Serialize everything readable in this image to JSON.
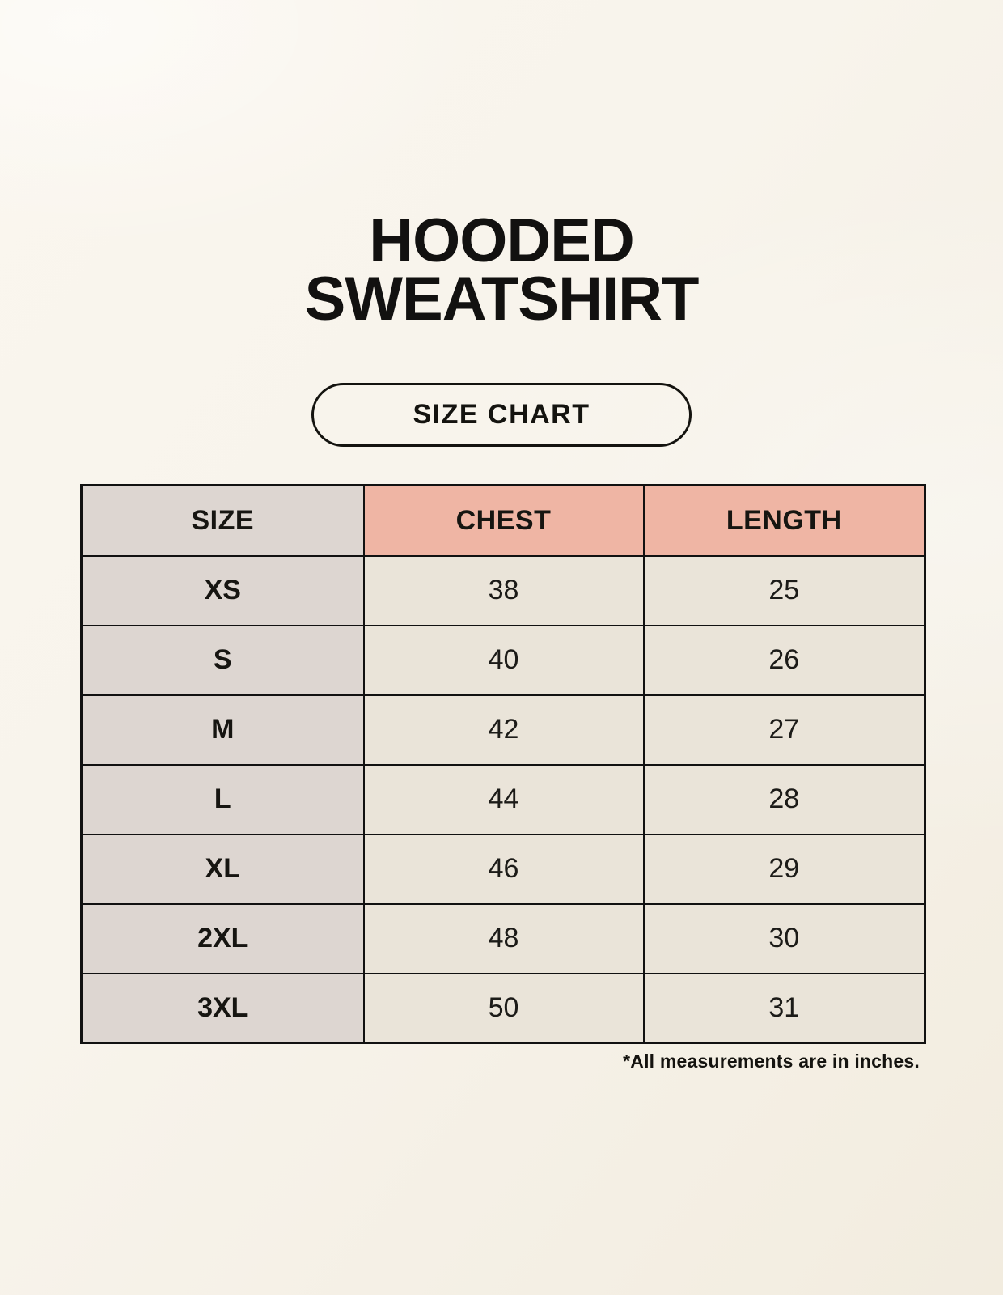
{
  "page": {
    "background_color": "#f8f4ec",
    "text_color": "#14130f"
  },
  "header": {
    "title_line1": "HOODED",
    "title_line2": "SWEATSHIRT",
    "badge_label": "SIZE CHART"
  },
  "size_chart": {
    "columns": [
      "SIZE",
      "CHEST",
      "LENGTH"
    ],
    "rows": [
      {
        "size": "XS",
        "chest": "38",
        "length": "25"
      },
      {
        "size": "S",
        "chest": "40",
        "length": "26"
      },
      {
        "size": "M",
        "chest": "42",
        "length": "27"
      },
      {
        "size": "L",
        "chest": "44",
        "length": "28"
      },
      {
        "size": "XL",
        "chest": "46",
        "length": "29"
      },
      {
        "size": "2XL",
        "chest": "48",
        "length": "30"
      },
      {
        "size": "3XL",
        "chest": "50",
        "length": "31"
      }
    ],
    "footnote": "*All measurements are in inches.",
    "colors": {
      "size_column_bg": "#ddd6d1",
      "measure_header_bg": "#efb5a4",
      "value_cell_bg": "#eae4d9",
      "border": "#111111"
    }
  },
  "chart_data": {
    "type": "table",
    "title": "HOODED SWEATSHIRT — SIZE CHART",
    "columns": [
      "SIZE",
      "CHEST",
      "LENGTH"
    ],
    "units": "inches",
    "rows": [
      [
        "XS",
        38,
        25
      ],
      [
        "S",
        40,
        26
      ],
      [
        "M",
        42,
        27
      ],
      [
        "L",
        44,
        28
      ],
      [
        "XL",
        46,
        29
      ],
      [
        "2XL",
        48,
        30
      ],
      [
        "3XL",
        50,
        31
      ]
    ],
    "note": "*All measurements are in inches."
  }
}
